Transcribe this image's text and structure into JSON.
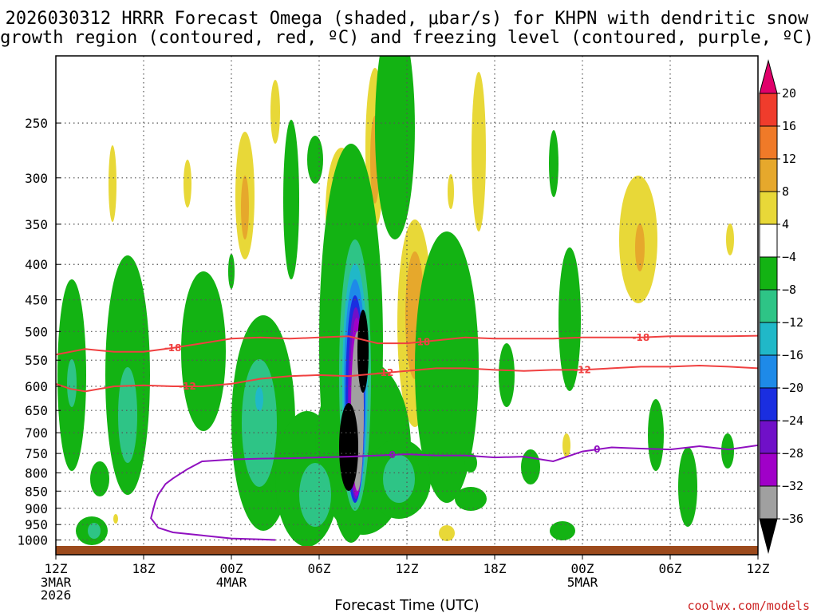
{
  "chart_data": {
    "type": "heatmap",
    "title_line1": "2026030312 HRRR Forecast Omega (shaded, μbar/s) for KHPN with dendritic snow",
    "title_line2": "growth region (contoured, red, ºC) and freezing level (contoured, purple, ºC)",
    "xlabel": "Forecast Time (UTC)",
    "credit": "coolwx.com/models",
    "x_hours": [
      0,
      6,
      12,
      18,
      24,
      30,
      36,
      42,
      48
    ],
    "x_tick_labels": [
      "12Z",
      "18Z",
      "00Z",
      "06Z",
      "12Z",
      "18Z",
      "00Z",
      "06Z",
      "12Z"
    ],
    "x_date_labels": [
      {
        "hour": 0,
        "lines": [
          "3MAR",
          "2026"
        ]
      },
      {
        "hour": 12,
        "lines": [
          "4MAR"
        ]
      },
      {
        "hour": 36,
        "lines": [
          "5MAR"
        ]
      }
    ],
    "y_ticks": [
      250,
      300,
      350,
      400,
      450,
      500,
      550,
      600,
      650,
      700,
      750,
      800,
      850,
      900,
      950,
      1000
    ],
    "y_labels": [
      "250",
      "300",
      "350",
      "400",
      "450",
      "500",
      "550",
      "600",
      "650",
      "700",
      "750",
      "800",
      "850",
      "900",
      "950",
      "1000"
    ],
    "ylim_hpa": [
      200,
      1020
    ],
    "colorbar_levels": [
      "20",
      "16",
      "12",
      "8",
      "4",
      "−4",
      "−8",
      "−12",
      "−16",
      "−20",
      "−24",
      "−28",
      "−32",
      "−36"
    ],
    "colorbar_colors": [
      "#e0006a",
      "#f03c2c",
      "#f07a28",
      "#e6a82c",
      "#e8d838",
      "#ffffff",
      "#13b313",
      "#2ec486",
      "#20b8c8",
      "#1e8ae8",
      "#1a2ee0",
      "#7010c8",
      "#a000c8",
      "#a0a0a0",
      "#000000"
    ],
    "isotherms": [
      {
        "name": "-18",
        "label": "-18",
        "color": "#f04040",
        "x": [
          0,
          2,
          4,
          6,
          8,
          10,
          12,
          14,
          16,
          18,
          20,
          22,
          24,
          26,
          28,
          30,
          32,
          34,
          36,
          38,
          40,
          42,
          44,
          46,
          48
        ],
        "p": [
          540,
          530,
          535,
          535,
          528,
          520,
          512,
          510,
          512,
          510,
          508,
          520,
          520,
          515,
          510,
          512,
          512,
          512,
          510,
          510,
          510,
          508,
          508,
          508,
          507
        ],
        "label_hours": [
          8,
          25,
          40
        ]
      },
      {
        "name": "-12",
        "label": "-12",
        "color": "#f04040",
        "x": [
          0,
          1,
          2,
          4,
          6,
          8,
          10,
          12,
          14,
          16,
          18,
          20,
          22,
          24,
          26,
          28,
          30,
          32,
          34,
          36,
          38,
          40,
          42,
          44,
          46,
          48
        ],
        "p": [
          595,
          605,
          610,
          600,
          598,
          600,
          600,
          595,
          585,
          580,
          578,
          580,
          575,
          570,
          565,
          565,
          568,
          570,
          568,
          568,
          565,
          562,
          562,
          560,
          562,
          565
        ],
        "label_hours": [
          9,
          22.5,
          36
        ]
      },
      {
        "name": "0",
        "label": "0",
        "color": "#9010c0",
        "x": [
          15,
          14,
          12,
          10,
          8,
          7,
          6.5,
          6.8,
          7,
          7.5,
          8,
          9,
          10,
          12,
          14,
          16,
          18,
          20,
          22,
          24,
          26,
          28,
          30,
          32,
          34,
          36,
          38,
          40,
          42,
          44,
          46,
          48
        ],
        "p": [
          1000,
          998,
          995,
          985,
          975,
          960,
          930,
          880,
          860,
          830,
          815,
          790,
          770,
          765,
          763,
          762,
          760,
          758,
          755,
          752,
          755,
          755,
          760,
          758,
          770,
          745,
          735,
          738,
          740,
          732,
          740,
          730
        ],
        "label_hours": [
          23,
          37
        ]
      }
    ]
  }
}
